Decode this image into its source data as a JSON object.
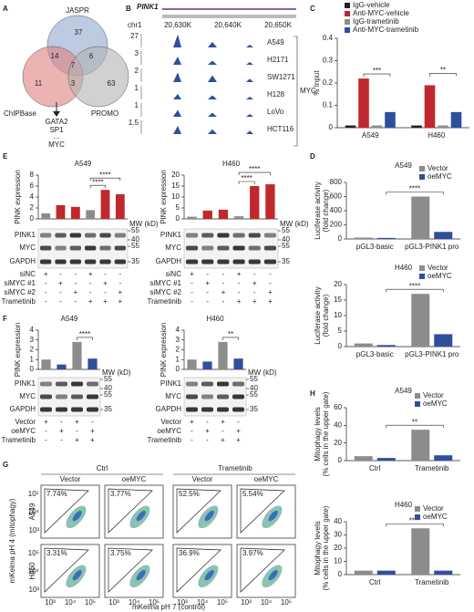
{
  "panel_labels": [
    "A",
    "B",
    "C",
    "D",
    "E",
    "F",
    "G",
    "H"
  ],
  "venn": {
    "sets": [
      "JASPR",
      "ChIPBase",
      "PROMO"
    ],
    "counts": [
      37,
      11,
      63,
      14,
      6,
      7,
      3
    ],
    "hits": [
      "GATA2",
      "SP1",
      "...",
      "MYC"
    ]
  },
  "track_b": {
    "gene": "PINK1",
    "chrom": "chr1",
    "ticks": [
      "20,630K",
      "20,640K",
      "20,650K"
    ],
    "scales": [
      27,
      3,
      2,
      1,
      1,
      1.5
    ],
    "cells": [
      "A549",
      "H2171",
      "SW1271",
      "H128",
      "LoVo",
      "HCT116"
    ],
    "factor": "MYC"
  },
  "chart_data": [
    {
      "type": "bar",
      "ylabel": [
        "% Input"
      ],
      "categories": [
        "A549",
        "H460"
      ],
      "ylim": [
        0,
        0.4
      ],
      "yticks": [
        0,
        0.1,
        0.2,
        0.3,
        0.4
      ],
      "series": [
        {
          "name": "IgG-vehicle",
          "color": "#222222",
          "values": [
            0.01,
            0.01
          ]
        },
        {
          "name": "Anti-MYC-vehicle",
          "color": "#c0282d",
          "values": [
            0.22,
            0.19
          ]
        },
        {
          "name": "IgG-trametinib",
          "color": "#8c8c8c",
          "values": [
            0.01,
            0.01
          ]
        },
        {
          "name": "Anti-MYC-trametinib",
          "color": "#2f4f9e",
          "values": [
            0.07,
            0.07
          ]
        }
      ],
      "annotations": [
        "***",
        "**"
      ]
    },
    {
      "type": "bar",
      "title": "A549",
      "ylabel": [
        "PINK expression"
      ],
      "ylim": [
        0,
        8
      ],
      "yticks": [
        0,
        2,
        4,
        6,
        8
      ],
      "values": [
        1,
        2.5,
        2.2,
        1.6,
        5.3,
        4.5
      ],
      "colors": [
        "#8c8c8c",
        "#c0282d",
        "#c0282d",
        "#8c8c8c",
        "#c0282d",
        "#c0282d"
      ],
      "annotations": [
        "****",
        "****"
      ]
    },
    {
      "type": "bar",
      "title": "H460",
      "ylabel": [
        "PINK expression"
      ],
      "ylim": [
        0,
        20
      ],
      "yticks": [
        0,
        5,
        10,
        15,
        20
      ],
      "values": [
        1,
        3.8,
        4.2,
        1.2,
        15,
        15.8
      ],
      "colors": [
        "#8c8c8c",
        "#c0282d",
        "#c0282d",
        "#8c8c8c",
        "#c0282d",
        "#c0282d"
      ],
      "annotations": [
        "****",
        "****"
      ]
    },
    {
      "type": "bar",
      "title": "A549",
      "ylabel": [
        "Luciferase activity",
        "(fold change)"
      ],
      "categories": [
        "pGL3-basic",
        "pGL3-PINK1 pro"
      ],
      "ylim": [
        0,
        800
      ],
      "yticks": [
        0,
        200,
        400,
        600,
        800
      ],
      "series": [
        {
          "name": "Vector",
          "color": "#8c8c8c",
          "values": [
            20,
            600
          ]
        },
        {
          "name": "oeMYC",
          "color": "#2f4f9e",
          "values": [
            15,
            100
          ]
        }
      ],
      "annotations": [
        "****"
      ]
    },
    {
      "type": "bar",
      "title": "H460",
      "ylabel": [
        "Luciferase activity",
        "(fold change)"
      ],
      "categories": [
        "pGL3-basic",
        "pGL3-PINK1 pro"
      ],
      "ylim": [
        0,
        20
      ],
      "yticks": [
        0,
        5,
        10,
        15,
        20
      ],
      "series": [
        {
          "name": "Vector",
          "color": "#8c8c8c",
          "values": [
            1,
            17
          ]
        },
        {
          "name": "oeMYC",
          "color": "#2f4f9e",
          "values": [
            0.5,
            4
          ]
        }
      ],
      "annotations": [
        "****"
      ]
    },
    {
      "type": "bar",
      "title": "A549",
      "ylabel": [
        "PINK expression"
      ],
      "ylim": [
        0,
        4
      ],
      "yticks": [
        0,
        1,
        2,
        3,
        4
      ],
      "values": [
        1,
        0.5,
        2.8,
        1.1
      ],
      "colors": [
        "#8c8c8c",
        "#2f4f9e",
        "#8c8c8c",
        "#2f4f9e"
      ],
      "annotations": [
        "****"
      ]
    },
    {
      "type": "bar",
      "title": "H460",
      "ylabel": [
        "PINK expression"
      ],
      "ylim": [
        0,
        4
      ],
      "yticks": [
        0,
        1,
        2,
        3,
        4
      ],
      "values": [
        1,
        0.8,
        2.8,
        1.1
      ],
      "colors": [
        "#8c8c8c",
        "#2f4f9e",
        "#8c8c8c",
        "#2f4f9e"
      ],
      "annotations": [
        "**"
      ]
    },
    {
      "type": "bar",
      "title": "A549",
      "ylabel": [
        "Mitophagy levels",
        "(% cells in the upper gate)"
      ],
      "categories": [
        "Ctrl",
        "Trametinib"
      ],
      "ylim": [
        0,
        60
      ],
      "yticks": [
        0,
        20,
        40,
        60
      ],
      "series": [
        {
          "name": "Vector",
          "color": "#8c8c8c",
          "values": [
            5,
            35
          ]
        },
        {
          "name": "oeMYC",
          "color": "#2f4f9e",
          "values": [
            3,
            6
          ]
        }
      ],
      "annotations": [
        "**"
      ]
    },
    {
      "type": "bar",
      "title": "H460",
      "ylabel": [
        "Mitophagy levels",
        "(% cells in the upper gate)"
      ],
      "categories": [
        "Ctrl",
        "Trametinib"
      ],
      "ylim": [
        0,
        40
      ],
      "yticks": [
        0,
        10,
        20,
        30,
        40
      ],
      "series": [
        {
          "name": "Vector",
          "color": "#8c8c8c",
          "values": [
            3,
            35
          ]
        },
        {
          "name": "oeMYC",
          "color": "#2f4f9e",
          "values": [
            3,
            3
          ]
        }
      ],
      "annotations": [
        "****"
      ]
    }
  ],
  "figure_e": {
    "rows": [
      "PINK1",
      "MYC",
      "GAPDH"
    ],
    "mw_title": "MW (kD)",
    "mw": [
      "55",
      "40",
      "55",
      "35"
    ],
    "conditions": [
      "siNC",
      "siMYC #1",
      "siMYC #2",
      "Trametinib"
    ],
    "signs": [
      [
        "+",
        "-",
        "-",
        "+",
        "-",
        "-"
      ],
      [
        "-",
        "+",
        "-",
        "-",
        "+",
        "-"
      ],
      [
        "-",
        "-",
        "+",
        "-",
        "-",
        "+"
      ],
      [
        "-",
        "-",
        "-",
        "+",
        "+",
        "+"
      ]
    ]
  },
  "figure_f": {
    "rows": [
      "PINK1",
      "MYC",
      "GAPDH"
    ],
    "mw_title": "MW (kD)",
    "mw": [
      "55",
      "40",
      "55",
      "35"
    ],
    "conditions": [
      "Vector",
      "oeMYC",
      "Trametinib"
    ],
    "signs": [
      [
        "+",
        "-",
        "+",
        "-"
      ],
      [
        "-",
        "+",
        "-",
        "+"
      ],
      [
        "-",
        "-",
        "+",
        "+"
      ]
    ]
  },
  "flow": {
    "groups": [
      "Ctrl",
      "Trametinib"
    ],
    "columns": [
      "Vector",
      "oeMYC",
      "Vector",
      "oeMYC"
    ],
    "rows": [
      "A549",
      "H460"
    ],
    "percents": [
      [
        "7.74%",
        "3.77%",
        "52.5%",
        "5.54%"
      ],
      [
        "3.31%",
        "3.75%",
        "36.9%",
        "3.97%"
      ]
    ],
    "ticks": [
      "10³",
      "10⁴",
      "10⁵"
    ],
    "ylabel": "mKeima pH 4 (mitophagy)",
    "xlabel": "mKeima pH 7 (control)"
  }
}
